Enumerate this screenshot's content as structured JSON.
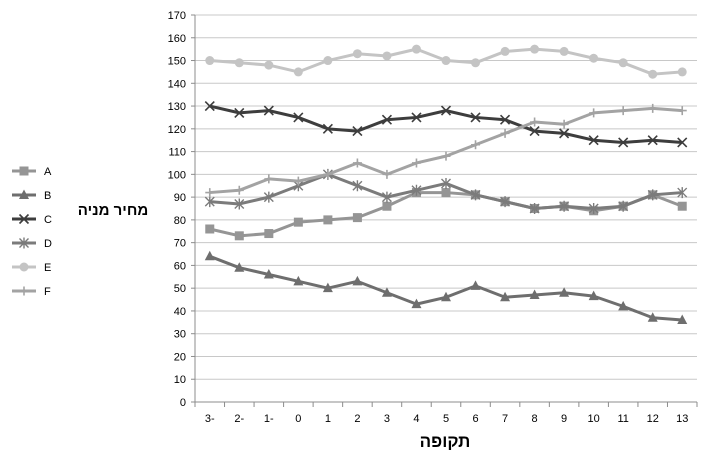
{
  "chart_data": {
    "type": "line",
    "title": "",
    "xlabel": "תקופה",
    "ylabel": "מחיר מניה",
    "x": [
      "-3",
      "-2",
      "-1",
      "0",
      "1",
      "2",
      "3",
      "4",
      "5",
      "6",
      "7",
      "8",
      "9",
      "10",
      "11",
      "12",
      "13"
    ],
    "x_tick_labels": [
      "3-",
      "2-",
      "1-",
      "0",
      "1",
      "2",
      "3",
      "4",
      "5",
      "6",
      "7",
      "8",
      "9",
      "10",
      "11",
      "12",
      "13"
    ],
    "ylim": [
      0,
      170
    ],
    "y_ticks": [
      0,
      10,
      20,
      30,
      40,
      50,
      60,
      70,
      80,
      90,
      100,
      110,
      120,
      130,
      140,
      150,
      160,
      170
    ],
    "grid": "horizontal",
    "legend_position": "left",
    "series": [
      {
        "name": "A",
        "marker": "square",
        "color": "#959595",
        "values": [
          76,
          73,
          74,
          79,
          80,
          81,
          86,
          92,
          92,
          91,
          88,
          85,
          86,
          84,
          86,
          91,
          86
        ]
      },
      {
        "name": "B",
        "marker": "triangle",
        "color": "#6e6e6e",
        "values": [
          64,
          59,
          56,
          53,
          50,
          53,
          48,
          43,
          46,
          51,
          46,
          47,
          48,
          46.5,
          42,
          37,
          36
        ]
      },
      {
        "name": "C",
        "marker": "x",
        "color": "#3d3d3d",
        "values": [
          130,
          127,
          128,
          125,
          120,
          119,
          124,
          125,
          128,
          125,
          124,
          119,
          118,
          115,
          114,
          115,
          114
        ]
      },
      {
        "name": "D",
        "marker": "star",
        "color": "#7b7b7b",
        "values": [
          88,
          87,
          90,
          95,
          100,
          95,
          90,
          93,
          96,
          91,
          88,
          85,
          86,
          85,
          86,
          91,
          92
        ]
      },
      {
        "name": "E",
        "marker": "circle",
        "color": "#c4c4c4",
        "values": [
          150,
          149,
          148,
          145,
          150,
          153,
          152,
          155,
          150,
          149,
          154,
          155,
          154,
          151,
          149,
          144,
          145
        ]
      },
      {
        "name": "F",
        "marker": "plus",
        "color": "#a3a3a3",
        "values": [
          92,
          93,
          98,
          97,
          100,
          105,
          100,
          105,
          108,
          113,
          118,
          123,
          122,
          127,
          128,
          129,
          128
        ]
      }
    ]
  }
}
